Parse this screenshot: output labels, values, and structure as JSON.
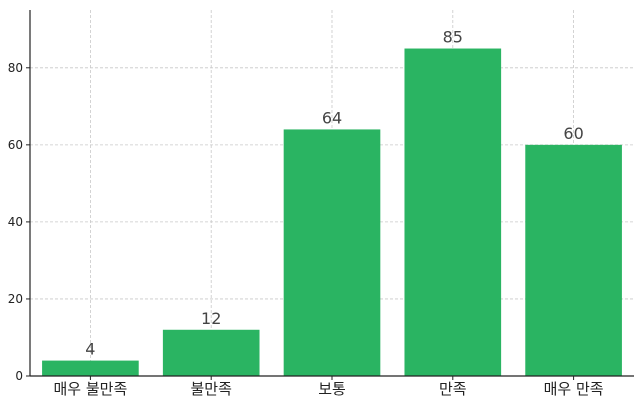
{
  "chart_data": {
    "type": "bar",
    "title": "",
    "xlabel": "",
    "ylabel": "",
    "categories": [
      "매우 불만족",
      "불만족",
      "보통",
      "만족",
      "매우 만족"
    ],
    "values": [
      4,
      12,
      64,
      85,
      60
    ],
    "value_labels": [
      "4",
      "12",
      "64",
      "85",
      "60"
    ],
    "ylim": [
      0,
      95
    ],
    "yticks": [
      0,
      20,
      40,
      60,
      80
    ],
    "ytick_labels": [
      "0",
      "20",
      "40",
      "60",
      "80"
    ],
    "grid": true,
    "bar_color": "#2ab462",
    "grid_color": "#c8c8c8",
    "axis_color": "#222222"
  }
}
